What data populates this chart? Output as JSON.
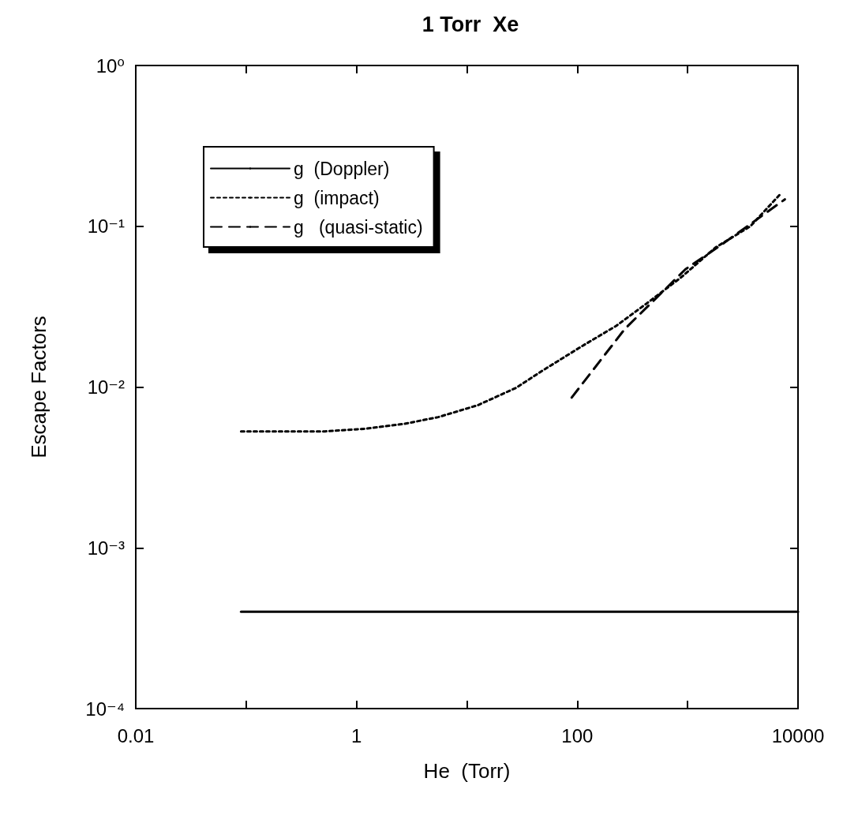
{
  "chart_data": {
    "type": "line",
    "title": "1 Torr  Xe",
    "xlabel": "He  (Torr)",
    "ylabel": "Escape Factors",
    "log": "xy",
    "grid": false,
    "legend": "top left",
    "marker": "none",
    "xlim": [
      0.01,
      10000
    ],
    "xticks": [
      0.01,
      {
        "value": 0.1,
        "label": null
      },
      1,
      {
        "value": 10,
        "label": null
      },
      100,
      {
        "value": 1000,
        "label": null
      },
      10000
    ],
    "ylim": [
      0.0001,
      1
    ],
    "yticks": [
      {
        "value": 0.0001,
        "label": "10⁻⁴"
      },
      {
        "value": 0.001,
        "label": "10⁻³"
      },
      {
        "value": 0.01,
        "label": "10⁻²"
      },
      {
        "value": 0.1,
        "label": "10⁻¹"
      },
      {
        "value": 1,
        "label": "10⁰"
      }
    ],
    "series": [
      {
        "name": "g  (Doppler)",
        "color": "#000000",
        "line_style": "solid",
        "x": [
          0.09,
          10000
        ],
        "values": [
          0.0004,
          0.0004
        ]
      },
      {
        "name": "g  (impact)",
        "color": "#000000",
        "line_style": "dotted",
        "x": [
          0.09,
          0.52,
          1.19,
          2.7,
          5.5,
          12.5,
          28,
          48,
          108,
          225,
          423,
          870,
          1800,
          3700,
          7000
        ],
        "values": [
          0.0053,
          0.0053,
          0.0055,
          0.0059,
          0.0065,
          0.0077,
          0.0099,
          0.0126,
          0.0178,
          0.024,
          0.033,
          0.048,
          0.074,
          0.1,
          0.16
        ]
      },
      {
        "name": "g   (quasi-static)",
        "color": "#000000",
        "line_style": "dashed",
        "x": [
          89,
          270,
          955,
          2150,
          7600
        ],
        "values": [
          0.0086,
          0.023,
          0.054,
          0.079,
          0.147
        ]
      }
    ]
  }
}
